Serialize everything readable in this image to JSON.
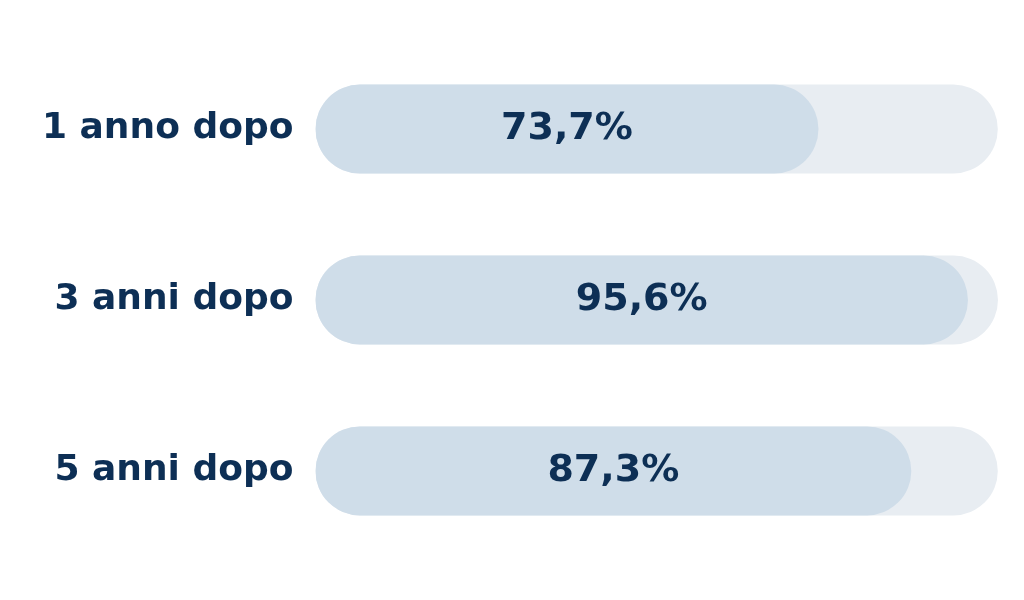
{
  "chart_data": {
    "type": "bar",
    "orientation": "horizontal",
    "categories": [
      "1 anno dopo",
      "3 anni dopo",
      "5 anni dopo"
    ],
    "values": [
      73.7,
      95.6,
      87.3
    ],
    "value_labels": [
      "73,7%",
      "95,6%",
      "87,3%"
    ],
    "color": "#cfdde9",
    "xlim": [
      0,
      100
    ],
    "tick_labels": "y",
    "legend": false
  }
}
